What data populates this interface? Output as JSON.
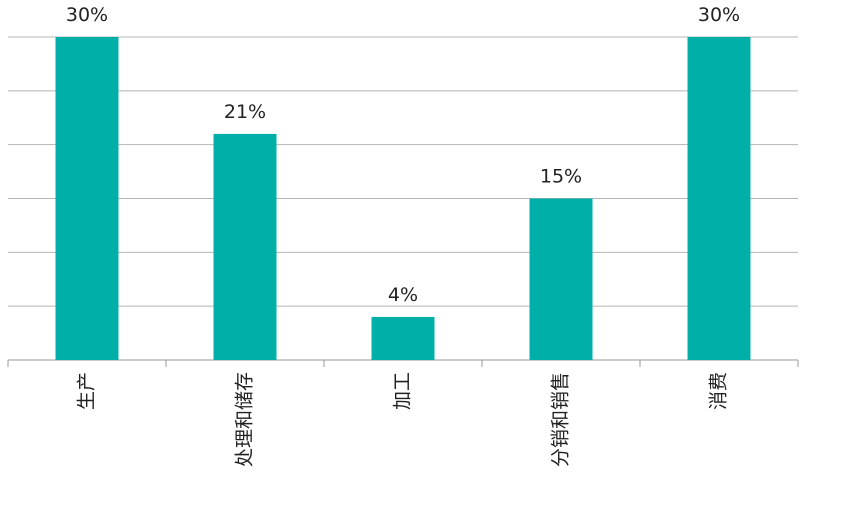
{
  "chart_data": {
    "type": "bar",
    "categories": [
      "生产",
      "处理和储存",
      "加工",
      "分销和销售",
      "消费"
    ],
    "values": [
      30,
      21,
      4,
      15,
      30
    ],
    "value_labels": [
      "30%",
      "21%",
      "4%",
      "15%",
      "30%"
    ],
    "color": "#00b0a8",
    "ylim": [
      0,
      30
    ],
    "yticks": [
      0,
      5,
      10,
      15,
      20,
      25,
      30
    ],
    "grid": true
  }
}
